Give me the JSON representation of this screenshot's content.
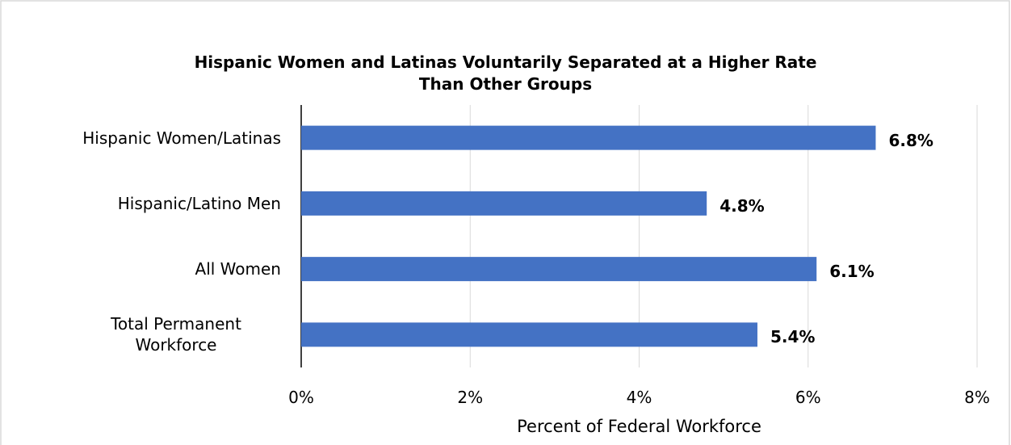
{
  "chart_data": {
    "type": "hbar",
    "title": "Hispanic Women and Latinas Voluntarily Separated at a Higher Rate Than Other Groups",
    "x_label": "Percent of Federal Workforce",
    "categories": [
      "Hispanic Women/Latinas",
      "Hispanic/Latino Men",
      "All Women",
      "Total Permanent Workforce"
    ],
    "values": [
      6.8,
      4.8,
      6.1,
      5.4
    ],
    "value_labels": [
      "6.8%",
      "4.8%",
      "6.1%",
      "5.4%"
    ],
    "color": "#4472c4",
    "xlim": [
      0,
      8
    ],
    "xticks": [
      {
        "value": 0,
        "label": "0%"
      },
      {
        "value": 2,
        "label": "2%"
      },
      {
        "value": 4,
        "label": "4%"
      },
      {
        "value": 6,
        "label": "6%"
      },
      {
        "value": 8,
        "label": "8%"
      }
    ],
    "grid": true
  }
}
